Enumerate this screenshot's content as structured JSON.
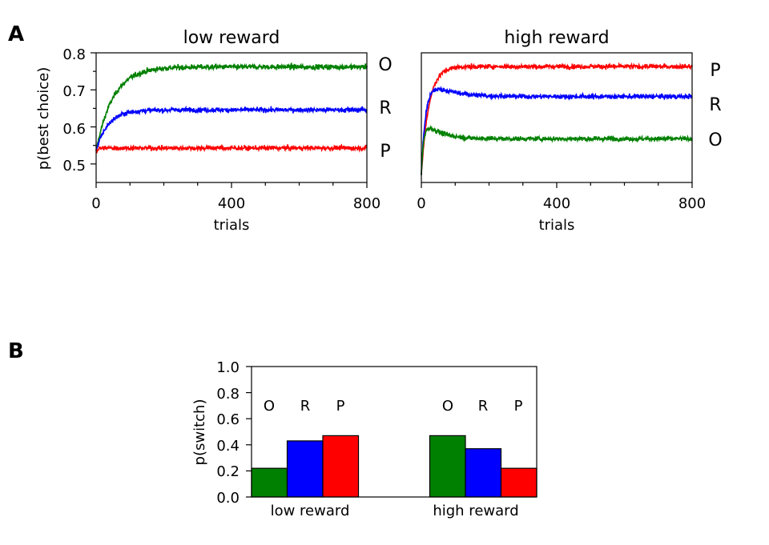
{
  "panel_labels": {
    "a": "A",
    "b": "B"
  },
  "chart_data": [
    {
      "type": "line",
      "panel": "A",
      "title": "low reward",
      "xlabel": "trials",
      "ylabel": "p(best choice)",
      "xlim": [
        0,
        800
      ],
      "ylim": [
        0.45,
        0.8
      ],
      "xticks": [
        "0",
        "400",
        "800"
      ],
      "yticks": [
        "0.5",
        "0.6",
        "0.7",
        "0.8"
      ],
      "series": [
        {
          "name": "O",
          "color": "#008000",
          "start": 0.535,
          "plateau": 0.762,
          "tau": 50,
          "peak": 0,
          "decay": 1,
          "noise": 0.009
        },
        {
          "name": "R",
          "color": "#0000ff",
          "start": 0.535,
          "plateau": 0.646,
          "tau": 35,
          "peak": 0,
          "decay": 1,
          "noise": 0.008
        },
        {
          "name": "P",
          "color": "#ff0000",
          "start": 0.53,
          "plateau": 0.543,
          "tau": 5,
          "peak": 0,
          "decay": 1,
          "noise": 0.008
        }
      ]
    },
    {
      "type": "line",
      "panel": "A",
      "title": "high reward",
      "xlabel": "trials",
      "ylabel": "",
      "xlim": [
        0,
        800
      ],
      "ylim": [
        0.45,
        0.8
      ],
      "xticks": [
        "0",
        "400",
        "800"
      ],
      "yticks": [],
      "series": [
        {
          "name": "P",
          "color": "#ff0000",
          "start": 0.47,
          "plateau": 0.763,
          "tau": 22,
          "peak": 0,
          "decay": 1,
          "noise": 0.008
        },
        {
          "name": "R",
          "color": "#0000ff",
          "start": 0.47,
          "plateau": 0.682,
          "tau": 14,
          "peak": 0.06,
          "decay": 60,
          "noise": 0.008
        },
        {
          "name": "O",
          "color": "#008000",
          "start": 0.47,
          "plateau": 0.568,
          "tau": 6,
          "peak": 0.06,
          "decay": 45,
          "noise": 0.008
        }
      ]
    },
    {
      "type": "bar",
      "panel": "B",
      "title": "",
      "xlabel": "",
      "ylabel": "p(switch)",
      "ylim": [
        0,
        1.0
      ],
      "yticks": [
        "0.0",
        "0.2",
        "0.4",
        "0.6",
        "0.8",
        "1.0"
      ],
      "categories": [
        "low reward",
        "high reward"
      ],
      "series": [
        {
          "name": "O",
          "color": "#008000",
          "values": [
            0.22,
            0.47
          ]
        },
        {
          "name": "R",
          "color": "#0000ff",
          "values": [
            0.43,
            0.37
          ]
        },
        {
          "name": "P",
          "color": "#ff0000",
          "values": [
            0.47,
            0.22
          ]
        }
      ]
    }
  ]
}
